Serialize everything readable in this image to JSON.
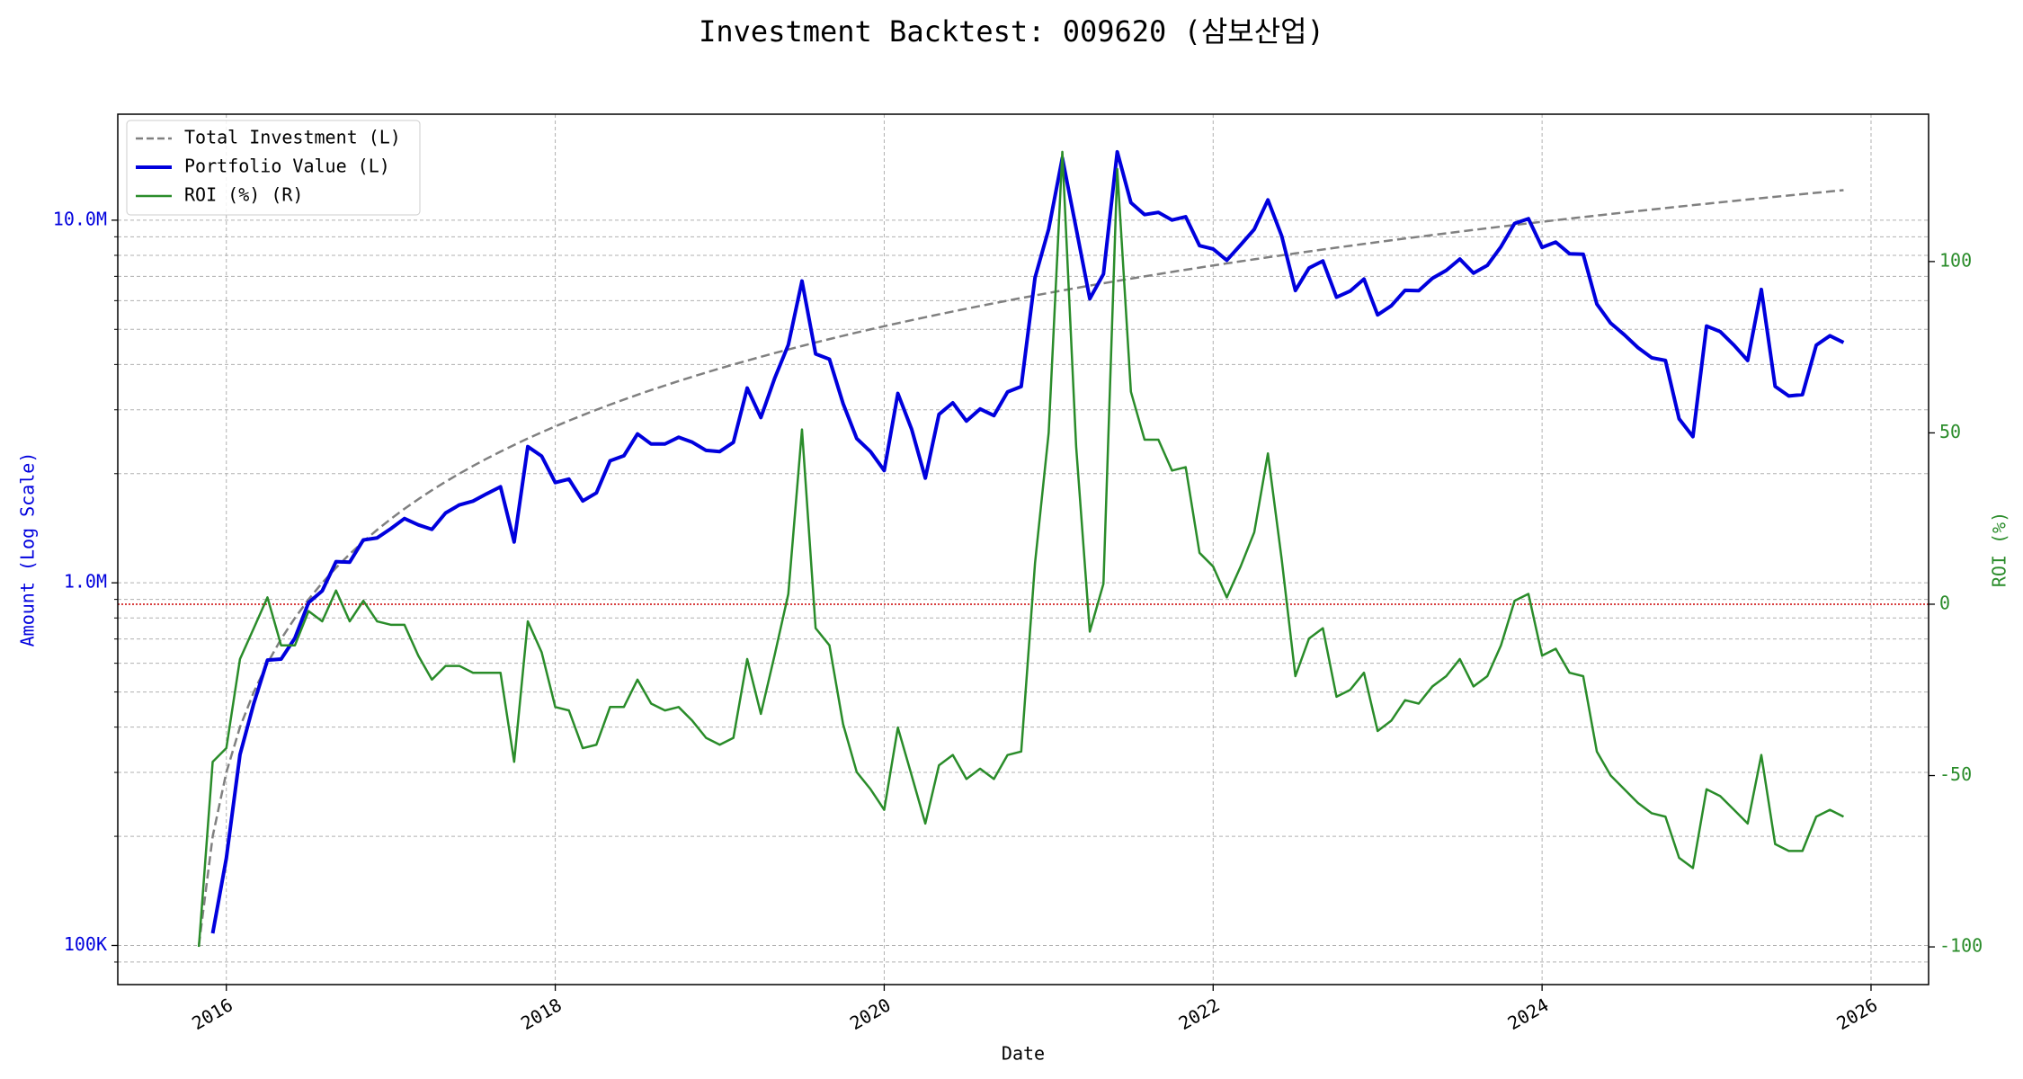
{
  "chart_data": {
    "type": "line",
    "title": "Investment Backtest: 009620 (삼보산업)",
    "xlabel": "Date",
    "ylabel": "Amount (Log Scale)",
    "y2label": "ROI (%)",
    "ylog": true,
    "grid": true,
    "legend": "upper left",
    "y2_reference_line": 0,
    "reference_color": "#cc0000",
    "xlim": [
      2015.34,
      2026.35
    ],
    "xticks": [
      2016,
      2018,
      2020,
      2022,
      2024,
      2026
    ],
    "ylim": [
      78000,
      19600000
    ],
    "yticks": [
      {
        "value": 100000,
        "label": "100K"
      },
      {
        "value": 1000000,
        "label": "1.0M"
      },
      {
        "value": 10000000,
        "label": "10.0M"
      }
    ],
    "yminorticks": [
      90000,
      200000,
      300000,
      400000,
      500000,
      600000,
      700000,
      800000,
      900000,
      2000000,
      3000000,
      4000000,
      5000000,
      6000000,
      7000000,
      8000000,
      9000000
    ],
    "y2lim": [
      -111,
      143
    ],
    "y2ticks": [
      -100,
      -50,
      0,
      50,
      100
    ],
    "x": [
      2015.833,
      2015.917,
      2016,
      2016.083,
      2016.167,
      2016.25,
      2016.333,
      2016.417,
      2016.5,
      2016.583,
      2016.667,
      2016.75,
      2016.833,
      2016.917,
      2017,
      2017.083,
      2017.167,
      2017.25,
      2017.333,
      2017.417,
      2017.5,
      2017.583,
      2017.667,
      2017.75,
      2017.833,
      2017.917,
      2018,
      2018.083,
      2018.167,
      2018.25,
      2018.333,
      2018.417,
      2018.5,
      2018.583,
      2018.667,
      2018.75,
      2018.833,
      2018.917,
      2019,
      2019.083,
      2019.167,
      2019.25,
      2019.333,
      2019.417,
      2019.5,
      2019.583,
      2019.667,
      2019.75,
      2019.833,
      2019.917,
      2020,
      2020.083,
      2020.167,
      2020.25,
      2020.333,
      2020.417,
      2020.5,
      2020.583,
      2020.667,
      2020.75,
      2020.833,
      2020.917,
      2021,
      2021.083,
      2021.167,
      2021.25,
      2021.333,
      2021.417,
      2021.5,
      2021.583,
      2021.667,
      2021.75,
      2021.833,
      2021.917,
      2022,
      2022.083,
      2022.167,
      2022.25,
      2022.333,
      2022.417,
      2022.5,
      2022.583,
      2022.667,
      2022.75,
      2022.833,
      2022.917,
      2023,
      2023.083,
      2023.167,
      2023.25,
      2023.333,
      2023.417,
      2023.5,
      2023.583,
      2023.667,
      2023.75,
      2023.833,
      2023.917,
      2024,
      2024.083,
      2024.167,
      2024.25,
      2024.333,
      2024.417,
      2024.5,
      2024.583,
      2024.667,
      2024.75,
      2024.833,
      2024.917,
      2025,
      2025.083,
      2025.167,
      2025.25,
      2025.333,
      2025.417,
      2025.5,
      2025.583,
      2025.667,
      2025.75,
      2025.833
    ],
    "series": [
      {
        "name": "Total Investment (L)",
        "color": "#808080",
        "dash": true,
        "axis": "y",
        "width": 2.5,
        "values": [
          100000,
          200000,
          300000,
          400000,
          500000,
          600000,
          700000,
          800000,
          900000,
          1000000,
          1100000,
          1200000,
          1300000,
          1400000,
          1500000,
          1600000,
          1700000,
          1800000,
          1900000,
          2000000,
          2100000,
          2200000,
          2300000,
          2400000,
          2500000,
          2600000,
          2700000,
          2800000,
          2900000,
          3000000,
          3100000,
          3200000,
          3300000,
          3400000,
          3500000,
          3600000,
          3700000,
          3800000,
          3900000,
          4000000,
          4100000,
          4200000,
          4300000,
          4400000,
          4500000,
          4600000,
          4700000,
          4800000,
          4900000,
          5000000,
          5100000,
          5200000,
          5300000,
          5400000,
          5500000,
          5600000,
          5700000,
          5800000,
          5900000,
          6000000,
          6100000,
          6200000,
          6300000,
          6400000,
          6500000,
          6600000,
          6700000,
          6800000,
          6900000,
          7000000,
          7100000,
          7200000,
          7300000,
          7400000,
          7500000,
          7600000,
          7700000,
          7800000,
          7900000,
          8000000,
          8100000,
          8200000,
          8300000,
          8400000,
          8500000,
          8600000,
          8700000,
          8800000,
          8900000,
          9000000,
          9100000,
          9200000,
          9300000,
          9400000,
          9500000,
          9600000,
          9700000,
          9800000,
          9900000,
          10000000,
          10100000,
          10200000,
          10300000,
          10400000,
          10500000,
          10600000,
          10700000,
          10800000,
          10900000,
          11000000,
          11100000,
          11200000,
          11300000,
          11400000,
          11500000,
          11600000,
          11700000,
          11800000,
          11900000,
          12000000,
          12100000
        ]
      },
      {
        "name": "Portfolio Value (L)",
        "color": "#0000dd",
        "dash": false,
        "axis": "y",
        "width": 4,
        "values": [
          null,
          108000,
          174000,
          336000,
          465000,
          612000,
          616000,
          704000,
          882000,
          950000,
          1144000,
          1140000,
          1313000,
          1330000,
          1410000,
          1504000,
          1445000,
          1404000,
          1558000,
          1640000,
          1680000,
          1760000,
          1840000,
          1296000,
          2375000,
          2236000,
          1890000,
          1932000,
          1682000,
          1770000,
          2170000,
          2240000,
          2574000,
          2414000,
          2415000,
          2520000,
          2442000,
          2318000,
          2301000,
          2440000,
          3444000,
          2856000,
          3655000,
          4532000,
          6795000,
          4278000,
          4136000,
          3120000,
          2499000,
          2300000,
          2040000,
          3328000,
          2650000,
          1944000,
          2915000,
          3136000,
          2793000,
          3016000,
          2891000,
          3360000,
          3477000,
          6944000,
          9450000,
          14848000,
          9490000,
          6072000,
          7102000,
          15436000,
          11178000,
          10360000,
          10508000,
          10008000,
          10220000,
          8510000,
          8325000,
          7752000,
          8547000,
          9438000,
          11376000,
          9040000,
          6399000,
          7380000,
          7719000,
          6132000,
          6375000,
          6880000,
          5481000,
          5808000,
          6408000,
          6390000,
          6916000,
          7268000,
          7812000,
          7144000,
          7505000,
          8448000,
          9797000,
          10094000,
          8415000,
          8700000,
          8080000,
          8058000,
          5871000,
          5200000,
          4830000,
          4452000,
          4173000,
          4104000,
          2834000,
          2530000,
          5106000,
          4928000,
          4520000,
          4104000,
          6440000,
          3480000,
          3276000,
          3304000,
          4522000,
          4800000,
          4598000
        ]
      },
      {
        "name": "ROI (%) (R)",
        "color": "#2a8c2a",
        "dash": false,
        "axis": "y2",
        "width": 2.5,
        "values": [
          -100,
          -46,
          -42,
          -16,
          -7,
          2,
          -12,
          -12,
          -2,
          -5,
          4,
          -5,
          1,
          -5,
          -6,
          -6,
          -15,
          -22,
          -18,
          -18,
          -20,
          -20,
          -20,
          -46,
          -5,
          -14,
          -30,
          -31,
          -42,
          -41,
          -30,
          -30,
          -22,
          -29,
          -31,
          -30,
          -34,
          -39,
          -41,
          -39,
          -16,
          -32,
          -15,
          3,
          51,
          -7,
          -12,
          -35,
          -49,
          -54,
          -60,
          -36,
          -50,
          -64,
          -47,
          -44,
          -51,
          -48,
          -51,
          -44,
          -43,
          12,
          50,
          132,
          46,
          -8,
          6,
          127,
          62,
          48,
          48,
          39,
          40,
          15,
          11,
          2,
          11,
          21,
          44,
          13,
          -21,
          -10,
          -7,
          -27,
          -25,
          -20,
          -37,
          -34,
          -28,
          -29,
          -24,
          -21,
          -16,
          -24,
          -21,
          -12,
          1,
          3,
          -15,
          -13,
          -20,
          -21,
          -43,
          -50,
          -54,
          -58,
          -61,
          -62,
          -74,
          -77,
          -54,
          -56,
          -60,
          -64,
          -44,
          -70,
          -72,
          -72,
          -62,
          -60,
          -62
        ]
      }
    ]
  }
}
